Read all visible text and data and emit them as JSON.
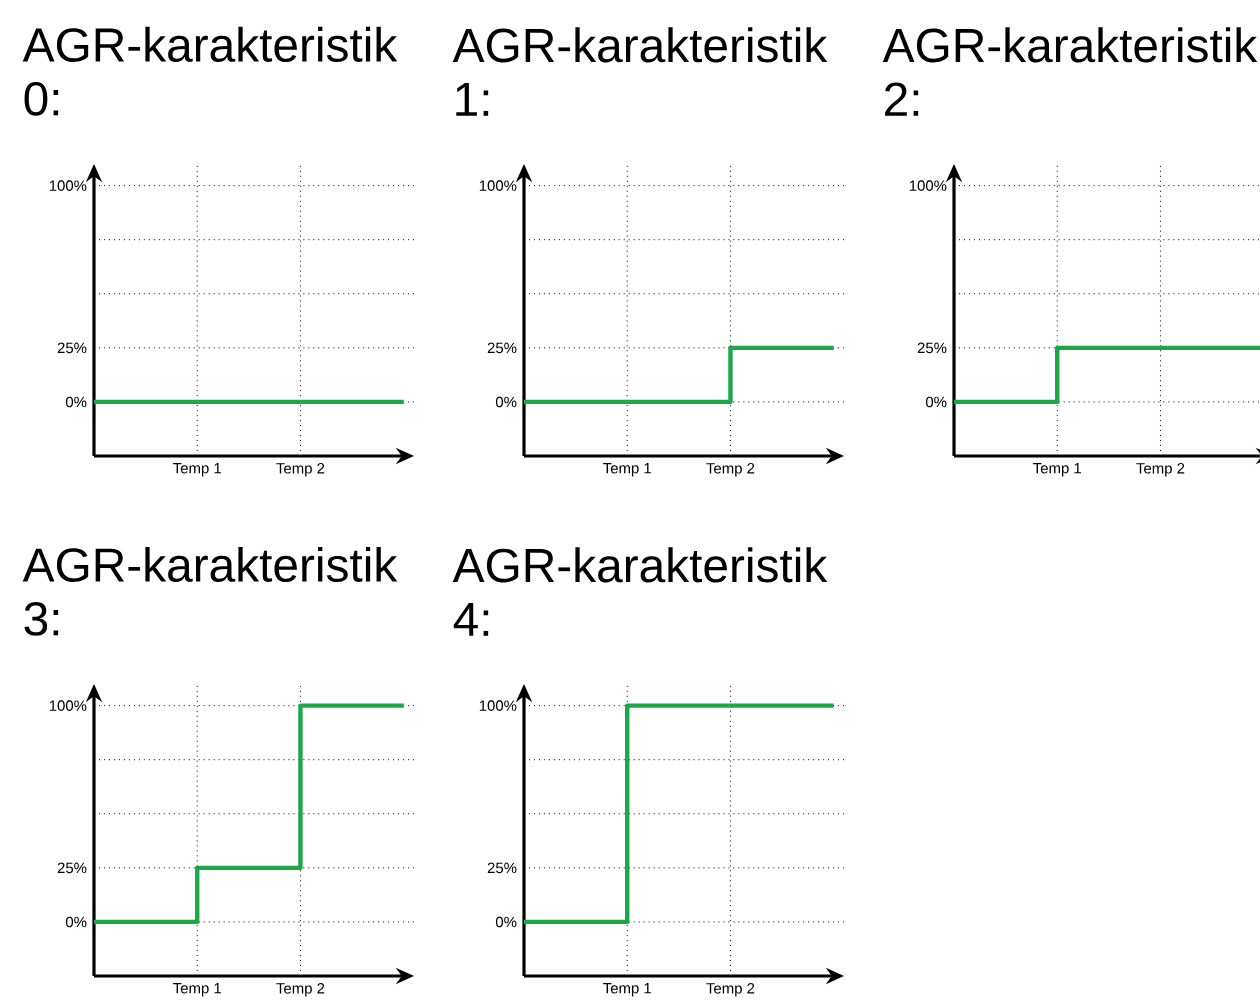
{
  "chart_data": [
    {
      "type": "step",
      "title": "AGR-karakteristik 0:",
      "categories": [
        null,
        "Temp 1",
        "Temp 2",
        null
      ],
      "values": [
        0,
        0,
        0,
        0
      ],
      "color": "#1aa84a",
      "ylim": [
        -25,
        110
      ],
      "yticks": [
        {
          "value": 0,
          "label": "0%"
        },
        {
          "value": 25,
          "label": "25%"
        },
        {
          "value": 50,
          "label": null
        },
        {
          "value": 75,
          "label": null
        },
        {
          "value": 100,
          "label": "100%"
        }
      ],
      "grid": true
    },
    {
      "type": "step",
      "title": "AGR-karakteristik 1:",
      "categories": [
        null,
        "Temp 1",
        "Temp 2",
        null
      ],
      "values": [
        0,
        0,
        25,
        25
      ],
      "color": "#1aa84a",
      "ylim": [
        -25,
        110
      ],
      "yticks": [
        {
          "value": 0,
          "label": "0%"
        },
        {
          "value": 25,
          "label": "25%"
        },
        {
          "value": 50,
          "label": null
        },
        {
          "value": 75,
          "label": null
        },
        {
          "value": 100,
          "label": "100%"
        }
      ],
      "grid": true
    },
    {
      "type": "step",
      "title": "AGR-karakteristik 2:",
      "categories": [
        null,
        "Temp 1",
        "Temp 2",
        null
      ],
      "values": [
        0,
        25,
        25,
        25
      ],
      "color": "#1aa84a",
      "ylim": [
        -25,
        110
      ],
      "yticks": [
        {
          "value": 0,
          "label": "0%"
        },
        {
          "value": 25,
          "label": "25%"
        },
        {
          "value": 50,
          "label": null
        },
        {
          "value": 75,
          "label": null
        },
        {
          "value": 100,
          "label": "100%"
        }
      ],
      "grid": true
    },
    {
      "type": "step",
      "title": "AGR-karakteristik 3:",
      "categories": [
        null,
        "Temp 1",
        "Temp 2",
        null
      ],
      "values": [
        0,
        25,
        100,
        100
      ],
      "color": "#1aa84a",
      "ylim": [
        -25,
        110
      ],
      "yticks": [
        {
          "value": 0,
          "label": "0%"
        },
        {
          "value": 25,
          "label": "25%"
        },
        {
          "value": 50,
          "label": null
        },
        {
          "value": 75,
          "label": null
        },
        {
          "value": 100,
          "label": "100%"
        }
      ],
      "grid": true
    },
    {
      "type": "step",
      "title": "AGR-karakteristik 4:",
      "categories": [
        null,
        "Temp 1",
        "Temp 2",
        null
      ],
      "values": [
        0,
        100,
        100,
        100
      ],
      "color": "#1aa84a",
      "ylim": [
        -25,
        110
      ],
      "yticks": [
        {
          "value": 0,
          "label": "0%"
        },
        {
          "value": 25,
          "label": "25%"
        },
        {
          "value": 50,
          "label": null
        },
        {
          "value": 75,
          "label": null
        },
        {
          "value": 100,
          "label": "100%"
        }
      ],
      "grid": true
    }
  ]
}
